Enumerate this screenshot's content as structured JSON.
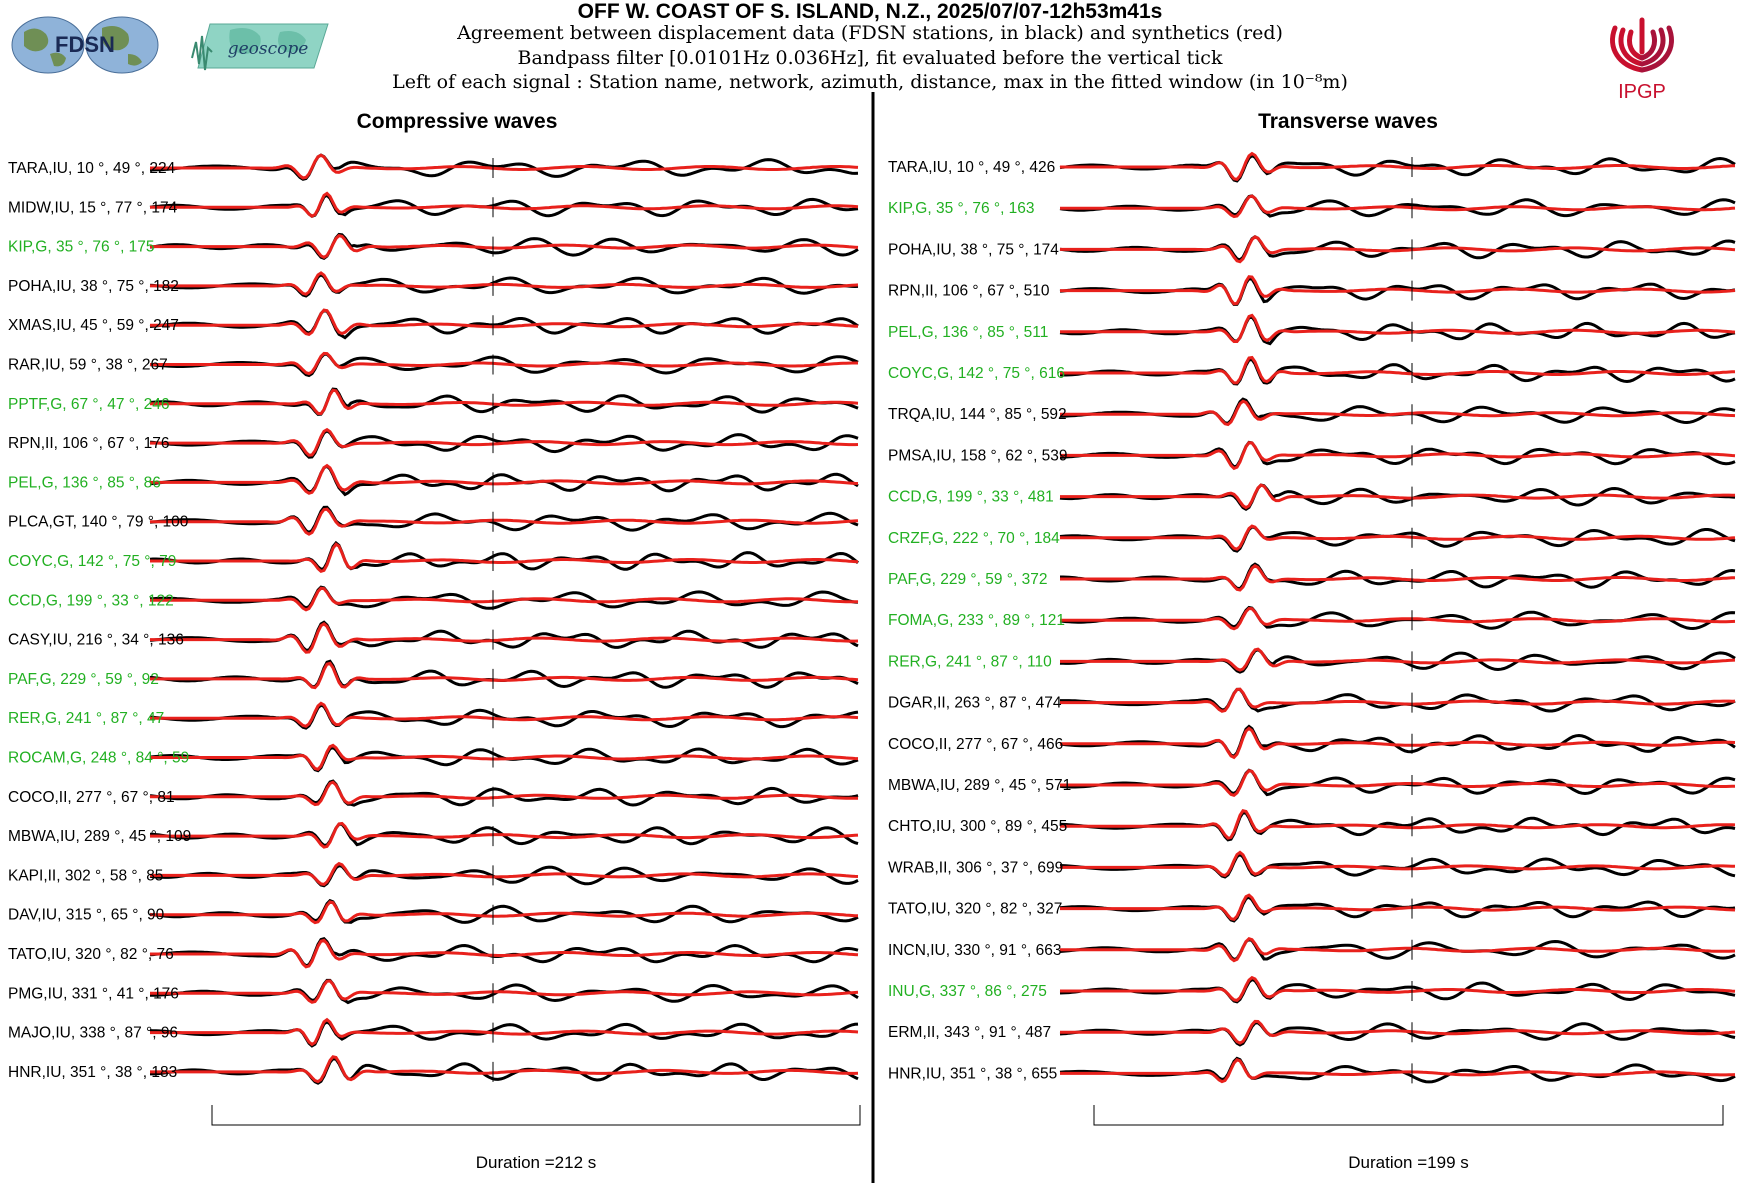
{
  "header": {
    "title": "OFF W. COAST OF S. ISLAND, N.Z., 2025/07/07-12h53m41s",
    "line1": "Agreement between displacement data (FDSN stations, in black) and synthetics (red)",
    "line2": "Bandpass filter [0.0101Hz 0.036Hz], fit evaluated before the vertical tick",
    "line3": "Left of each signal : Station name, network, azimuth, distance, max in the fitted window (in 10⁻⁸m)",
    "logos": {
      "fdsn": "FDSN",
      "geoscope": "geoscope",
      "ipgp": "IPGP"
    }
  },
  "colors": {
    "data": "#000000",
    "synthetic": "#e8211c",
    "geoscope_label": "#22b022",
    "other_label": "#000000"
  },
  "chart_data": [
    {
      "type": "line",
      "title": "Compressive waves",
      "duration_label": "Duration =212 s",
      "duration_s": 212,
      "traces": [
        {
          "label": "TARA,IU, 10 °, 49 °, 224",
          "station": "TARA",
          "network": "IU",
          "azimuth": 10,
          "distance": 49,
          "max": 224,
          "geoscope": false
        },
        {
          "label": "MIDW,IU, 15 °, 77 °, 174",
          "station": "MIDW",
          "network": "IU",
          "azimuth": 15,
          "distance": 77,
          "max": 174,
          "geoscope": false
        },
        {
          "label": "KIP,G, 35 °, 76 °, 175",
          "station": "KIP",
          "network": "G",
          "azimuth": 35,
          "distance": 76,
          "max": 175,
          "geoscope": true
        },
        {
          "label": "POHA,IU, 38 °, 75 °, 182",
          "station": "POHA",
          "network": "IU",
          "azimuth": 38,
          "distance": 75,
          "max": 182,
          "geoscope": false
        },
        {
          "label": "XMAS,IU, 45 °, 59 °, 247",
          "station": "XMAS",
          "network": "IU",
          "azimuth": 45,
          "distance": 59,
          "max": 247,
          "geoscope": false
        },
        {
          "label": "RAR,IU, 59 °, 38 °, 267",
          "station": "RAR",
          "network": "IU",
          "azimuth": 59,
          "distance": 38,
          "max": 267,
          "geoscope": false
        },
        {
          "label": "PPTF,G, 67 °, 47 °, 246",
          "station": "PPTF",
          "network": "G",
          "azimuth": 67,
          "distance": 47,
          "max": 246,
          "geoscope": true
        },
        {
          "label": "RPN,II, 106 °, 67 °, 176",
          "station": "RPN",
          "network": "II",
          "azimuth": 106,
          "distance": 67,
          "max": 176,
          "geoscope": false
        },
        {
          "label": "PEL,G, 136 °, 85 °, 86",
          "station": "PEL",
          "network": "G",
          "azimuth": 136,
          "distance": 85,
          "max": 86,
          "geoscope": true
        },
        {
          "label": "PLCA,GT, 140 °, 79 °, 100",
          "station": "PLCA",
          "network": "GT",
          "azimuth": 140,
          "distance": 79,
          "max": 100,
          "geoscope": false
        },
        {
          "label": "COYC,G, 142 °, 75 °, 79",
          "station": "COYC",
          "network": "G",
          "azimuth": 142,
          "distance": 75,
          "max": 79,
          "geoscope": true
        },
        {
          "label": "CCD,G, 199 °, 33 °, 122",
          "station": "CCD",
          "network": "G",
          "azimuth": 199,
          "distance": 33,
          "max": 122,
          "geoscope": true
        },
        {
          "label": "CASY,IU, 216 °, 34 °, 136",
          "station": "CASY",
          "network": "IU",
          "azimuth": 216,
          "distance": 34,
          "max": 136,
          "geoscope": false
        },
        {
          "label": "PAF,G, 229 °, 59 °, 92",
          "station": "PAF",
          "network": "G",
          "azimuth": 229,
          "distance": 59,
          "max": 92,
          "geoscope": true
        },
        {
          "label": "RER,G, 241 °, 87 °, 47",
          "station": "RER",
          "network": "G",
          "azimuth": 241,
          "distance": 87,
          "max": 47,
          "geoscope": true
        },
        {
          "label": "ROCAM,G, 248 °, 84 °, 59",
          "station": "ROCAM",
          "network": "G",
          "azimuth": 248,
          "distance": 84,
          "max": 59,
          "geoscope": true
        },
        {
          "label": "COCO,II, 277 °, 67 °, 81",
          "station": "COCO",
          "network": "II",
          "azimuth": 277,
          "distance": 67,
          "max": 81,
          "geoscope": false
        },
        {
          "label": "MBWA,IU, 289 °, 45 °, 109",
          "station": "MBWA",
          "network": "IU",
          "azimuth": 289,
          "distance": 45,
          "max": 109,
          "geoscope": false
        },
        {
          "label": "KAPI,II, 302 °, 58 °, 85",
          "station": "KAPI",
          "network": "II",
          "azimuth": 302,
          "distance": 58,
          "max": 85,
          "geoscope": false
        },
        {
          "label": "DAV,IU, 315 °, 65 °, 90",
          "station": "DAV",
          "network": "IU",
          "azimuth": 315,
          "distance": 65,
          "max": 90,
          "geoscope": false
        },
        {
          "label": "TATO,IU, 320 °, 82 °, 76",
          "station": "TATO",
          "network": "IU",
          "azimuth": 320,
          "distance": 82,
          "max": 76,
          "geoscope": false
        },
        {
          "label": "PMG,IU, 331 °, 41 °, 176",
          "station": "PMG",
          "network": "IU",
          "azimuth": 331,
          "distance": 41,
          "max": 176,
          "geoscope": false
        },
        {
          "label": "MAJO,IU, 338 °, 87 °, 96",
          "station": "MAJO",
          "network": "IU",
          "azimuth": 338,
          "distance": 87,
          "max": 96,
          "geoscope": false
        },
        {
          "label": "HNR,IU, 351 °, 38 °, 183",
          "station": "HNR",
          "network": "IU",
          "azimuth": 351,
          "distance": 38,
          "max": 183,
          "geoscope": false
        }
      ]
    },
    {
      "type": "line",
      "title": "Transverse waves",
      "duration_label": "Duration =199 s",
      "duration_s": 199,
      "traces": [
        {
          "label": "TARA,IU, 10 °, 49 °, 426",
          "station": "TARA",
          "network": "IU",
          "azimuth": 10,
          "distance": 49,
          "max": 426,
          "geoscope": false
        },
        {
          "label": "KIP,G, 35 °, 76 °, 163",
          "station": "KIP",
          "network": "G",
          "azimuth": 35,
          "distance": 76,
          "max": 163,
          "geoscope": true
        },
        {
          "label": "POHA,IU, 38 °, 75 °, 174",
          "station": "POHA",
          "network": "IU",
          "azimuth": 38,
          "distance": 75,
          "max": 174,
          "geoscope": false
        },
        {
          "label": "RPN,II, 106 °, 67 °, 510",
          "station": "RPN",
          "network": "II",
          "azimuth": 106,
          "distance": 67,
          "max": 510,
          "geoscope": false
        },
        {
          "label": "PEL,G, 136 °, 85 °, 511",
          "station": "PEL",
          "network": "G",
          "azimuth": 136,
          "distance": 85,
          "max": 511,
          "geoscope": true
        },
        {
          "label": "COYC,G, 142 °, 75 °, 616",
          "station": "COYC",
          "network": "G",
          "azimuth": 142,
          "distance": 75,
          "max": 616,
          "geoscope": true
        },
        {
          "label": "TRQA,IU, 144 °, 85 °, 592",
          "station": "TRQA",
          "network": "IU",
          "azimuth": 144,
          "distance": 85,
          "max": 592,
          "geoscope": false
        },
        {
          "label": "PMSA,IU, 158 °, 62 °, 539",
          "station": "PMSA",
          "network": "IU",
          "azimuth": 158,
          "distance": 62,
          "max": 539,
          "geoscope": false
        },
        {
          "label": "CCD,G, 199 °, 33 °, 481",
          "station": "CCD",
          "network": "G",
          "azimuth": 199,
          "distance": 33,
          "max": 481,
          "geoscope": true
        },
        {
          "label": "CRZF,G, 222 °, 70 °, 184",
          "station": "CRZF",
          "network": "G",
          "azimuth": 222,
          "distance": 70,
          "max": 184,
          "geoscope": true
        },
        {
          "label": "PAF,G, 229 °, 59 °, 372",
          "station": "PAF",
          "network": "G",
          "azimuth": 229,
          "distance": 59,
          "max": 372,
          "geoscope": true
        },
        {
          "label": "FOMA,G, 233 °, 89 °, 121",
          "station": "FOMA",
          "network": "G",
          "azimuth": 233,
          "distance": 89,
          "max": 121,
          "geoscope": true
        },
        {
          "label": "RER,G, 241 °, 87 °, 110",
          "station": "RER",
          "network": "G",
          "azimuth": 241,
          "distance": 87,
          "max": 110,
          "geoscope": true
        },
        {
          "label": "DGAR,II, 263 °, 87 °, 474",
          "station": "DGAR",
          "network": "II",
          "azimuth": 263,
          "distance": 87,
          "max": 474,
          "geoscope": false
        },
        {
          "label": "COCO,II, 277 °, 67 °, 466",
          "station": "COCO",
          "network": "II",
          "azimuth": 277,
          "distance": 67,
          "max": 466,
          "geoscope": false
        },
        {
          "label": "MBWA,IU, 289 °, 45 °, 571",
          "station": "MBWA",
          "network": "IU",
          "azimuth": 289,
          "distance": 45,
          "max": 571,
          "geoscope": false
        },
        {
          "label": "CHTO,IU, 300 °, 89 °, 455",
          "station": "CHTO",
          "network": "IU",
          "azimuth": 300,
          "distance": 89,
          "max": 455,
          "geoscope": false
        },
        {
          "label": "WRAB,II, 306 °, 37 °, 699",
          "station": "WRAB",
          "network": "II",
          "azimuth": 306,
          "distance": 37,
          "max": 699,
          "geoscope": false
        },
        {
          "label": "TATO,IU, 320 °, 82 °, 327",
          "station": "TATO",
          "network": "IU",
          "azimuth": 320,
          "distance": 82,
          "max": 327,
          "geoscope": false
        },
        {
          "label": "INCN,IU, 330 °, 91 °, 663",
          "station": "INCN",
          "network": "IU",
          "azimuth": 330,
          "distance": 91,
          "max": 663,
          "geoscope": false
        },
        {
          "label": "INU,G, 337 °, 86 °, 275",
          "station": "INU",
          "network": "G",
          "azimuth": 337,
          "distance": 86,
          "max": 275,
          "geoscope": true
        },
        {
          "label": "ERM,II, 343 °, 91 °, 487",
          "station": "ERM",
          "network": "II",
          "azimuth": 343,
          "distance": 91,
          "max": 487,
          "geoscope": false
        },
        {
          "label": "HNR,IU, 351 °, 38 °, 655",
          "station": "HNR",
          "network": "IU",
          "azimuth": 351,
          "distance": 38,
          "max": 655,
          "geoscope": false
        }
      ]
    }
  ]
}
